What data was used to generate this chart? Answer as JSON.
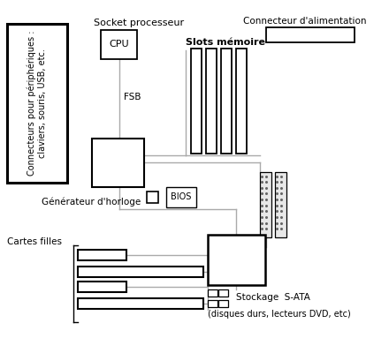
{
  "bg_color": "#ffffff",
  "line_color": "#aaaaaa",
  "box_color": "#000000",
  "text_color": "#000000",
  "figsize": [
    4.4,
    3.83
  ],
  "dpi": 100,
  "labels": {
    "connecteurs": "Connecteurs pour périphériques :\nclaviers, souris, USB, etc.",
    "socket": "Socket processeur",
    "cpu": "CPU",
    "fsb": "FSB",
    "slots": "Slots mémoire",
    "alimentation": "Connecteur d'alimentation",
    "generateur": "Générateur d'horloge",
    "bios": "BIOS",
    "cartes": "Cartes filles",
    "stockage": "Stockage  S-ATA",
    "stockage2": "(disques durs, lecteurs DVD, etc)"
  }
}
